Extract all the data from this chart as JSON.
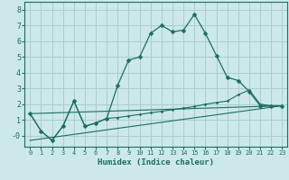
{
  "xlabel": "Humidex (Indice chaleur)",
  "bg_color": "#cce8e8",
  "grid_color": "#aacece",
  "line_color": "#1a6e62",
  "xlim": [
    -0.5,
    23.5
  ],
  "ylim": [
    -0.7,
    8.5
  ],
  "xticks": [
    0,
    1,
    2,
    3,
    4,
    5,
    6,
    7,
    8,
    9,
    10,
    11,
    12,
    13,
    14,
    15,
    16,
    17,
    18,
    19,
    20,
    21,
    22,
    23
  ],
  "yticks": [
    0,
    1,
    2,
    3,
    4,
    5,
    6,
    7,
    8
  ],
  "ytick_labels": [
    "-0",
    "1",
    "2",
    "3",
    "4",
    "5",
    "6",
    "7",
    "8"
  ],
  "series1_x": [
    0,
    1,
    2,
    3,
    4,
    5,
    6,
    7,
    8,
    9,
    10,
    11,
    12,
    13,
    14,
    15,
    16,
    17,
    18,
    19,
    20,
    21,
    22,
    23
  ],
  "series1_y": [
    1.4,
    0.3,
    -0.3,
    0.6,
    2.2,
    0.6,
    0.8,
    1.1,
    3.2,
    4.8,
    5.0,
    6.5,
    7.0,
    6.6,
    6.7,
    7.7,
    6.5,
    5.1,
    3.7,
    3.5,
    2.8,
    1.9,
    1.9,
    1.9
  ],
  "series2_x": [
    0,
    1,
    2,
    3,
    4,
    5,
    6,
    7,
    8,
    9,
    10,
    11,
    12,
    13,
    14,
    15,
    16,
    17,
    18,
    19,
    20,
    21,
    22,
    23
  ],
  "series2_y": [
    1.4,
    0.3,
    -0.3,
    0.6,
    2.2,
    0.6,
    0.8,
    1.1,
    1.15,
    1.25,
    1.35,
    1.45,
    1.55,
    1.65,
    1.75,
    1.85,
    2.0,
    2.1,
    2.2,
    2.6,
    2.9,
    2.0,
    1.9,
    1.9
  ],
  "series3_x": [
    0,
    23
  ],
  "series3_y": [
    1.4,
    1.9
  ],
  "series4_x": [
    0,
    23
  ],
  "series4_y": [
    -0.3,
    1.9
  ]
}
